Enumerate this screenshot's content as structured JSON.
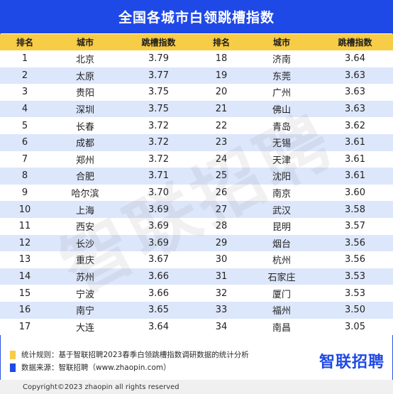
{
  "title": "全国各城市白领跳槽指数",
  "colors": {
    "header_bg": "#1f49e6",
    "table_header_bg": "#f7cc46",
    "row_alt_bg": "#dde7fb",
    "note1_square": "#f7cc46",
    "note2_square": "#1f49e6"
  },
  "headers": [
    "排名",
    "城市",
    "跳槽指数",
    "排名",
    "城市",
    "跳槽指数"
  ],
  "left_rows": [
    [
      "1",
      "北京",
      "3.79"
    ],
    [
      "2",
      "太原",
      "3.77"
    ],
    [
      "3",
      "贵阳",
      "3.75"
    ],
    [
      "4",
      "深圳",
      "3.75"
    ],
    [
      "5",
      "长春",
      "3.72"
    ],
    [
      "6",
      "成都",
      "3.72"
    ],
    [
      "7",
      "郑州",
      "3.72"
    ],
    [
      "8",
      "合肥",
      "3.71"
    ],
    [
      "9",
      "哈尔滨",
      "3.70"
    ],
    [
      "10",
      "上海",
      "3.69"
    ],
    [
      "11",
      "西安",
      "3.69"
    ],
    [
      "12",
      "长沙",
      "3.69"
    ],
    [
      "13",
      "重庆",
      "3.67"
    ],
    [
      "14",
      "苏州",
      "3.66"
    ],
    [
      "15",
      "宁波",
      "3.66"
    ],
    [
      "16",
      "南宁",
      "3.65"
    ],
    [
      "17",
      "大连",
      "3.64"
    ]
  ],
  "right_rows": [
    [
      "18",
      "济南",
      "3.64"
    ],
    [
      "19",
      "东莞",
      "3.63"
    ],
    [
      "20",
      "广州",
      "3.63"
    ],
    [
      "21",
      "佛山",
      "3.63"
    ],
    [
      "22",
      "青岛",
      "3.62"
    ],
    [
      "23",
      "无锡",
      "3.61"
    ],
    [
      "24",
      "天津",
      "3.61"
    ],
    [
      "25",
      "沈阳",
      "3.61"
    ],
    [
      "26",
      "南京",
      "3.60"
    ],
    [
      "27",
      "武汉",
      "3.58"
    ],
    [
      "28",
      "昆明",
      "3.57"
    ],
    [
      "29",
      "烟台",
      "3.56"
    ],
    [
      "30",
      "杭州",
      "3.56"
    ],
    [
      "31",
      "石家庄",
      "3.53"
    ],
    [
      "32",
      "厦门",
      "3.53"
    ],
    [
      "33",
      "福州",
      "3.50"
    ],
    [
      "34",
      "南昌",
      "3.05"
    ]
  ],
  "watermark": "智联招聘",
  "notes": {
    "stat_rule": "统计规则：基于智联招聘2023春季白领跳槽指数调研数据的统计分析",
    "data_source": "数据来源：智联招聘（www.zhaopin.com）"
  },
  "logo": "智联招聘",
  "copyright": "Copyright©2023 zhaopin all rights reserved"
}
